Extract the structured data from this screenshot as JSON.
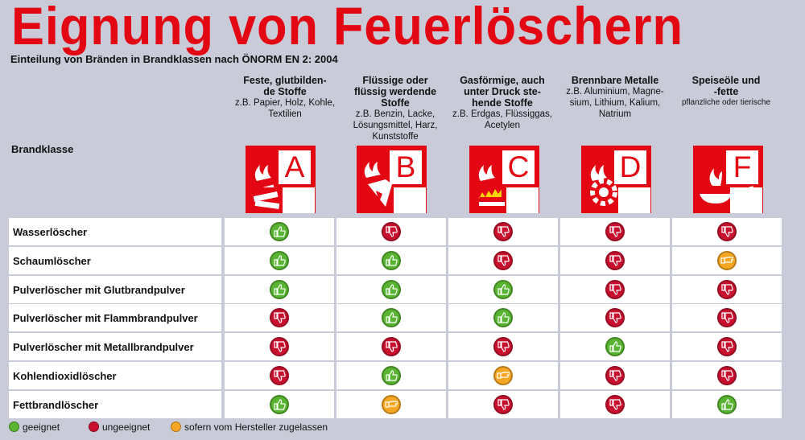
{
  "title": "Eignung von Feuerlöschern",
  "subtitle": "Einteilung von Bränden in Brandklassen nach ÖNORM EN 2: 2004",
  "brandklasse_label": "Brandklasse",
  "colors": {
    "red": "#e30613",
    "good": "#58b431",
    "bad": "#c8102e",
    "conditional": "#f5a623",
    "background": "#c9ccd8"
  },
  "classes": [
    {
      "letter": "A",
      "heading": "Feste, glutbilden-de Stoffe",
      "heading_l1": "Feste, glutbilden-",
      "heading_l2": "de Stoffe",
      "sub": "z.B. Papier, Holz, Kohle, Textilien",
      "sub_l1": "z.B. Papier, Holz, Kohle,",
      "sub_l2": "Textilien",
      "sub_l3": "",
      "sub_l4": "",
      "icon": "solid-fire-icon"
    },
    {
      "letter": "B",
      "heading": "Flüssige oder flüssig werdende Stoffe",
      "heading_l1": "Flüssige oder",
      "heading_l2": "flüssig werdende",
      "heading_l3": "Stoffe",
      "sub": "z.B. Benzin, Lacke, Lösungsmittel, Harz, Kunststoffe",
      "sub_l1": "z.B. Benzin, Lacke,",
      "sub_l2": "Lösungsmittel, Harz,",
      "sub_l3": "Kunststoffe",
      "icon": "liquid-fire-icon"
    },
    {
      "letter": "C",
      "heading": "Gasförmige, auch unter Druck ste-hende Stoffe",
      "heading_l1": "Gasförmige, auch",
      "heading_l2": "unter Druck ste-",
      "heading_l3": "hende Stoffe",
      "sub": "z.B. Erdgas, Flüssiggas, Acetylen",
      "sub_l1": "z.B. Erdgas, Flüssiggas,",
      "sub_l2": "Acetylen",
      "icon": "gas-fire-icon"
    },
    {
      "letter": "D",
      "heading": "Brennbare Metalle",
      "heading_l1": "Brennbare Metalle",
      "sub": "z.B. Aluminium, Magne-sium, Lithium, Kalium, Natrium",
      "sub_l1": "z.B. Aluminium, Magne-",
      "sub_l2": "sium, Lithium, Kalium,",
      "sub_l3": "Natrium",
      "icon": "metal-fire-icon"
    },
    {
      "letter": "F",
      "heading": "Speiseöle und -fette",
      "heading_l1": "Speiseöle und",
      "heading_l2": "-fette",
      "sub": "pflanzliche oder tierische",
      "sub_l1": "pflanzliche oder tierische",
      "icon": "pan-fire-icon"
    }
  ],
  "rows": [
    {
      "label": "Wasserlöscher",
      "ratings": [
        "good",
        "bad",
        "bad",
        "bad",
        "bad"
      ]
    },
    {
      "label": "Schaumlöscher",
      "ratings": [
        "good",
        "good",
        "bad",
        "bad",
        "conditional"
      ]
    },
    {
      "label": "Pulverlöscher mit Glutbrandpulver",
      "ratings": [
        "good",
        "good",
        "good",
        "bad",
        "bad"
      ]
    },
    {
      "label": "Pulverlöscher mit Flammbrandpulver",
      "ratings": [
        "bad",
        "good",
        "good",
        "bad",
        "bad"
      ]
    },
    {
      "label": "Pulverlöscher mit Metallbrandpulver",
      "ratings": [
        "bad",
        "bad",
        "bad",
        "good",
        "bad"
      ]
    },
    {
      "label": "Kohlendioxidlöscher",
      "ratings": [
        "bad",
        "good",
        "conditional",
        "bad",
        "bad"
      ]
    },
    {
      "label": "Fettbrandlöscher",
      "ratings": [
        "good",
        "conditional",
        "bad",
        "bad",
        "good"
      ]
    }
  ],
  "legend": [
    {
      "key": "good",
      "label": "geeignet"
    },
    {
      "key": "bad",
      "label": "ungeeignet"
    },
    {
      "key": "conditional",
      "label": "sofern vom Hersteller zugelassen"
    }
  ]
}
